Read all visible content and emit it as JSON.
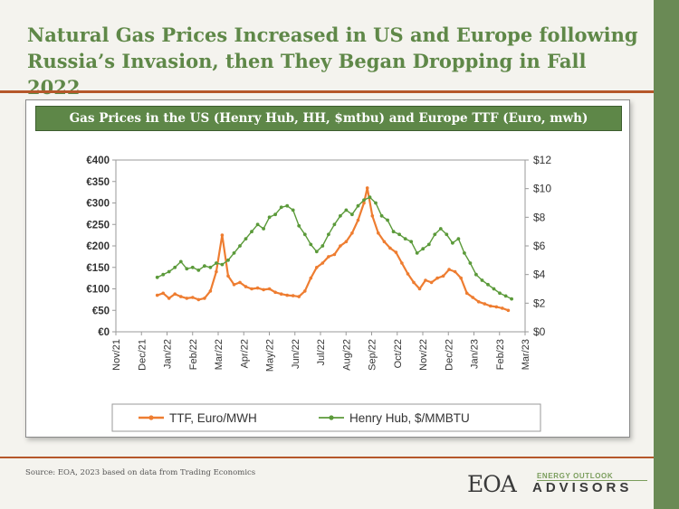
{
  "headline": "Natural Gas Prices Increased in US and Europe following Russia’s Invasion, then They Began Dropping in Fall 2022",
  "source": "Source: EOA, 2023 based on data from Trading Economics",
  "logo": {
    "main": "EOA",
    "tagline": "ENERGY OUTLOOK",
    "subtitle": "DVISORS",
    "initial": "A"
  },
  "colors": {
    "accent_green": "#5e8748",
    "rule_orange": "#b5572a",
    "ttf": "#ee7d31",
    "hh": "#5b9a3a"
  },
  "chart_data": {
    "type": "line",
    "title": "Gas Prices in the US (Henry Hub, HH, $mtbu) and Europe TTF  (Euro, mwh)",
    "x_ticks": [
      "Nov/21",
      "Dec/21",
      "Jan/22",
      "Feb/22",
      "Mar/22",
      "Apr/22",
      "May/22",
      "Jun/22",
      "Jul/22",
      "Aug/22",
      "Sep/22",
      "Oct/22",
      "Nov/22",
      "Dec/22",
      "Jan/23",
      "Feb/23",
      "Mar/23"
    ],
    "y_left": {
      "range": [
        0,
        400
      ],
      "ticks": [
        "€0",
        "€50",
        "€100",
        "€150",
        "€200",
        "€250",
        "€300",
        "€350",
        "€400"
      ]
    },
    "y_right": {
      "range": [
        0,
        12
      ],
      "ticks": [
        "$0",
        "$2",
        "$4",
        "$6",
        "$8",
        "$10",
        "$12"
      ]
    },
    "grid": false,
    "legend_position": "bottom",
    "series": [
      {
        "name": "TTF, Euro/MWH",
        "axis": "left",
        "x": [
          "2021-12-20",
          "2021-12-27",
          "2022-01-03",
          "2022-01-10",
          "2022-01-17",
          "2022-01-24",
          "2022-01-31",
          "2022-02-07",
          "2022-02-14",
          "2022-02-21",
          "2022-02-28",
          "2022-03-07",
          "2022-03-14",
          "2022-03-21",
          "2022-03-28",
          "2022-04-04",
          "2022-04-11",
          "2022-04-18",
          "2022-04-25",
          "2022-05-02",
          "2022-05-09",
          "2022-05-16",
          "2022-05-23",
          "2022-05-30",
          "2022-06-06",
          "2022-06-13",
          "2022-06-20",
          "2022-06-27",
          "2022-07-04",
          "2022-07-11",
          "2022-07-18",
          "2022-07-25",
          "2022-08-01",
          "2022-08-08",
          "2022-08-15",
          "2022-08-22",
          "2022-08-26",
          "2022-09-01",
          "2022-09-08",
          "2022-09-15",
          "2022-09-22",
          "2022-09-29",
          "2022-10-06",
          "2022-10-13",
          "2022-10-20",
          "2022-10-27",
          "2022-11-03",
          "2022-11-10",
          "2022-11-17",
          "2022-11-24",
          "2022-12-01",
          "2022-12-08",
          "2022-12-15",
          "2022-12-22",
          "2022-12-29",
          "2023-01-05",
          "2023-01-12",
          "2023-01-19",
          "2023-01-26",
          "2023-02-02",
          "2023-02-09"
        ],
        "values": [
          85,
          90,
          78,
          88,
          82,
          78,
          80,
          75,
          78,
          95,
          140,
          225,
          130,
          110,
          115,
          105,
          100,
          102,
          98,
          100,
          92,
          88,
          85,
          84,
          82,
          95,
          125,
          150,
          160,
          175,
          180,
          200,
          210,
          230,
          260,
          300,
          335,
          270,
          230,
          210,
          195,
          185,
          160,
          135,
          115,
          100,
          120,
          115,
          125,
          130,
          145,
          140,
          125,
          90,
          80,
          70,
          65,
          60,
          58,
          55,
          50
        ]
      },
      {
        "name": "Henry Hub, $/MMBTU",
        "axis": "right",
        "x": [
          "2021-12-20",
          "2021-12-27",
          "2022-01-03",
          "2022-01-10",
          "2022-01-17",
          "2022-01-24",
          "2022-01-31",
          "2022-02-07",
          "2022-02-14",
          "2022-02-21",
          "2022-02-28",
          "2022-03-07",
          "2022-03-14",
          "2022-03-21",
          "2022-03-28",
          "2022-04-04",
          "2022-04-11",
          "2022-04-18",
          "2022-04-25",
          "2022-05-02",
          "2022-05-09",
          "2022-05-16",
          "2022-05-23",
          "2022-05-30",
          "2022-06-06",
          "2022-06-13",
          "2022-06-20",
          "2022-06-27",
          "2022-07-04",
          "2022-07-11",
          "2022-07-18",
          "2022-07-25",
          "2022-08-01",
          "2022-08-08",
          "2022-08-15",
          "2022-08-22",
          "2022-08-29",
          "2022-09-05",
          "2022-09-12",
          "2022-09-19",
          "2022-09-26",
          "2022-10-03",
          "2022-10-10",
          "2022-10-17",
          "2022-10-24",
          "2022-10-31",
          "2022-11-07",
          "2022-11-14",
          "2022-11-21",
          "2022-11-28",
          "2022-12-05",
          "2022-12-12",
          "2022-12-19",
          "2022-12-26",
          "2023-01-02",
          "2023-01-09",
          "2023-01-16",
          "2023-01-23",
          "2023-01-30",
          "2023-02-06",
          "2023-02-13"
        ],
        "values": [
          3.8,
          4.0,
          4.2,
          4.5,
          4.9,
          4.4,
          4.5,
          4.3,
          4.6,
          4.5,
          4.8,
          4.7,
          5.0,
          5.5,
          6.0,
          6.5,
          7.0,
          7.5,
          7.2,
          8.0,
          8.2,
          8.7,
          8.8,
          8.5,
          7.4,
          6.8,
          6.1,
          5.6,
          6.0,
          6.8,
          7.5,
          8.1,
          8.5,
          8.2,
          8.8,
          9.2,
          9.4,
          9.0,
          8.1,
          7.8,
          7.0,
          6.8,
          6.5,
          6.3,
          5.5,
          5.8,
          6.1,
          6.8,
          7.2,
          6.8,
          6.2,
          6.5,
          5.5,
          4.8,
          4.0,
          3.6,
          3.3,
          3.0,
          2.7,
          2.5,
          2.3
        ]
      }
    ]
  }
}
